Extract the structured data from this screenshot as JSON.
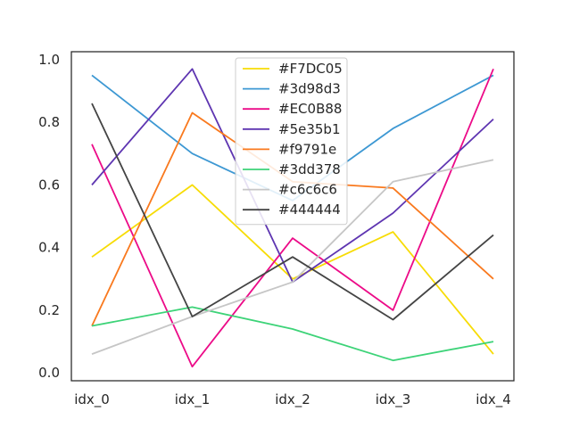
{
  "chart_data": {
    "type": "line",
    "categories": [
      "idx_0",
      "idx_1",
      "idx_2",
      "idx_3",
      "idx_4"
    ],
    "ylim": [
      -0.025,
      1.025
    ],
    "yticks": [
      0.0,
      0.2,
      0.4,
      0.6,
      0.8,
      1.0
    ],
    "ytick_labels": [
      "0.0",
      "0.2",
      "0.4",
      "0.6",
      "0.8",
      "1.0"
    ],
    "legend_position": "upper-center",
    "grid": false,
    "series": [
      {
        "name": "#F7DC05",
        "color": "#F7DC05",
        "values": [
          0.37,
          0.6,
          0.3,
          0.45,
          0.06
        ]
      },
      {
        "name": "#3d98d3",
        "color": "#3d98d3",
        "values": [
          0.95,
          0.7,
          0.55,
          0.78,
          0.95
        ]
      },
      {
        "name": "#EC0B88",
        "color": "#EC0B88",
        "values": [
          0.73,
          0.02,
          0.43,
          0.2,
          0.97
        ]
      },
      {
        "name": "#5e35b1",
        "color": "#5e35b1",
        "values": [
          0.6,
          0.97,
          0.29,
          0.51,
          0.81
        ]
      },
      {
        "name": "#f9791e",
        "color": "#f9791e",
        "values": [
          0.15,
          0.83,
          0.61,
          0.59,
          0.3
        ]
      },
      {
        "name": "#3dd378",
        "color": "#3dd378",
        "values": [
          0.15,
          0.21,
          0.14,
          0.04,
          0.1
        ]
      },
      {
        "name": "#c6c6c6",
        "color": "#c6c6c6",
        "values": [
          0.06,
          0.18,
          0.29,
          0.61,
          0.68
        ]
      },
      {
        "name": "#444444",
        "color": "#444444",
        "values": [
          0.86,
          0.18,
          0.37,
          0.17,
          0.44
        ]
      }
    ]
  }
}
